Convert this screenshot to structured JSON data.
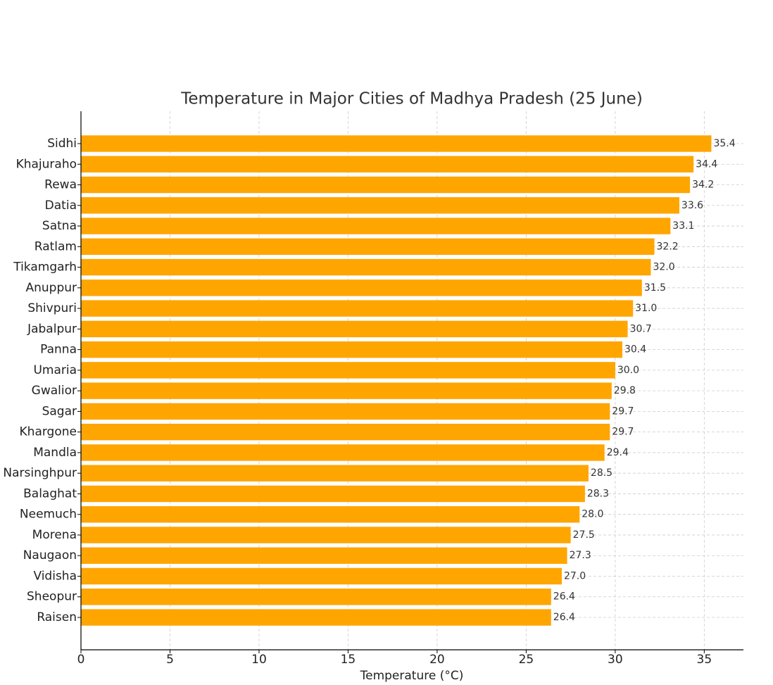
{
  "chart_data": {
    "type": "barh",
    "title": "Temperature in Major Cities of Madhya Pradesh (25 June)",
    "x_label": "Temperature (°C)",
    "categories": [
      "Sidhi",
      "Khajuraho",
      "Rewa",
      "Datia",
      "Satna",
      "Ratlam",
      "Tikamgarh",
      "Anuppur",
      "Shivpuri",
      "Jabalpur",
      "Panna",
      "Umaria",
      "Gwalior",
      "Sagar",
      "Khargone",
      "Mandla",
      "Narsinghpur",
      "Balaghat",
      "Neemuch",
      "Morena",
      "Naugaon",
      "Vidisha",
      "Sheopur",
      "Raisen"
    ],
    "values": [
      35.4,
      34.4,
      34.2,
      33.6,
      33.1,
      32.2,
      32.0,
      31.5,
      31.0,
      30.7,
      30.4,
      30.0,
      29.8,
      29.7,
      29.7,
      29.4,
      28.5,
      28.3,
      28.0,
      27.5,
      27.3,
      27.0,
      26.4,
      26.4
    ],
    "value_labels": [
      "35.4",
      "34.4",
      "34.2",
      "33.6",
      "33.1",
      "32.2",
      "32.0",
      "31.5",
      "31.0",
      "30.7",
      "30.4",
      "30.0",
      "29.8",
      "29.7",
      "29.7",
      "29.4",
      "28.5",
      "28.3",
      "28.0",
      "27.5",
      "27.3",
      "27.0",
      "26.4",
      "26.4"
    ],
    "color": "#ffa500",
    "xlim": [
      0,
      37.2
    ],
    "xticks": [
      0,
      5,
      10,
      15,
      20,
      25,
      30,
      35
    ],
    "grid": true
  }
}
